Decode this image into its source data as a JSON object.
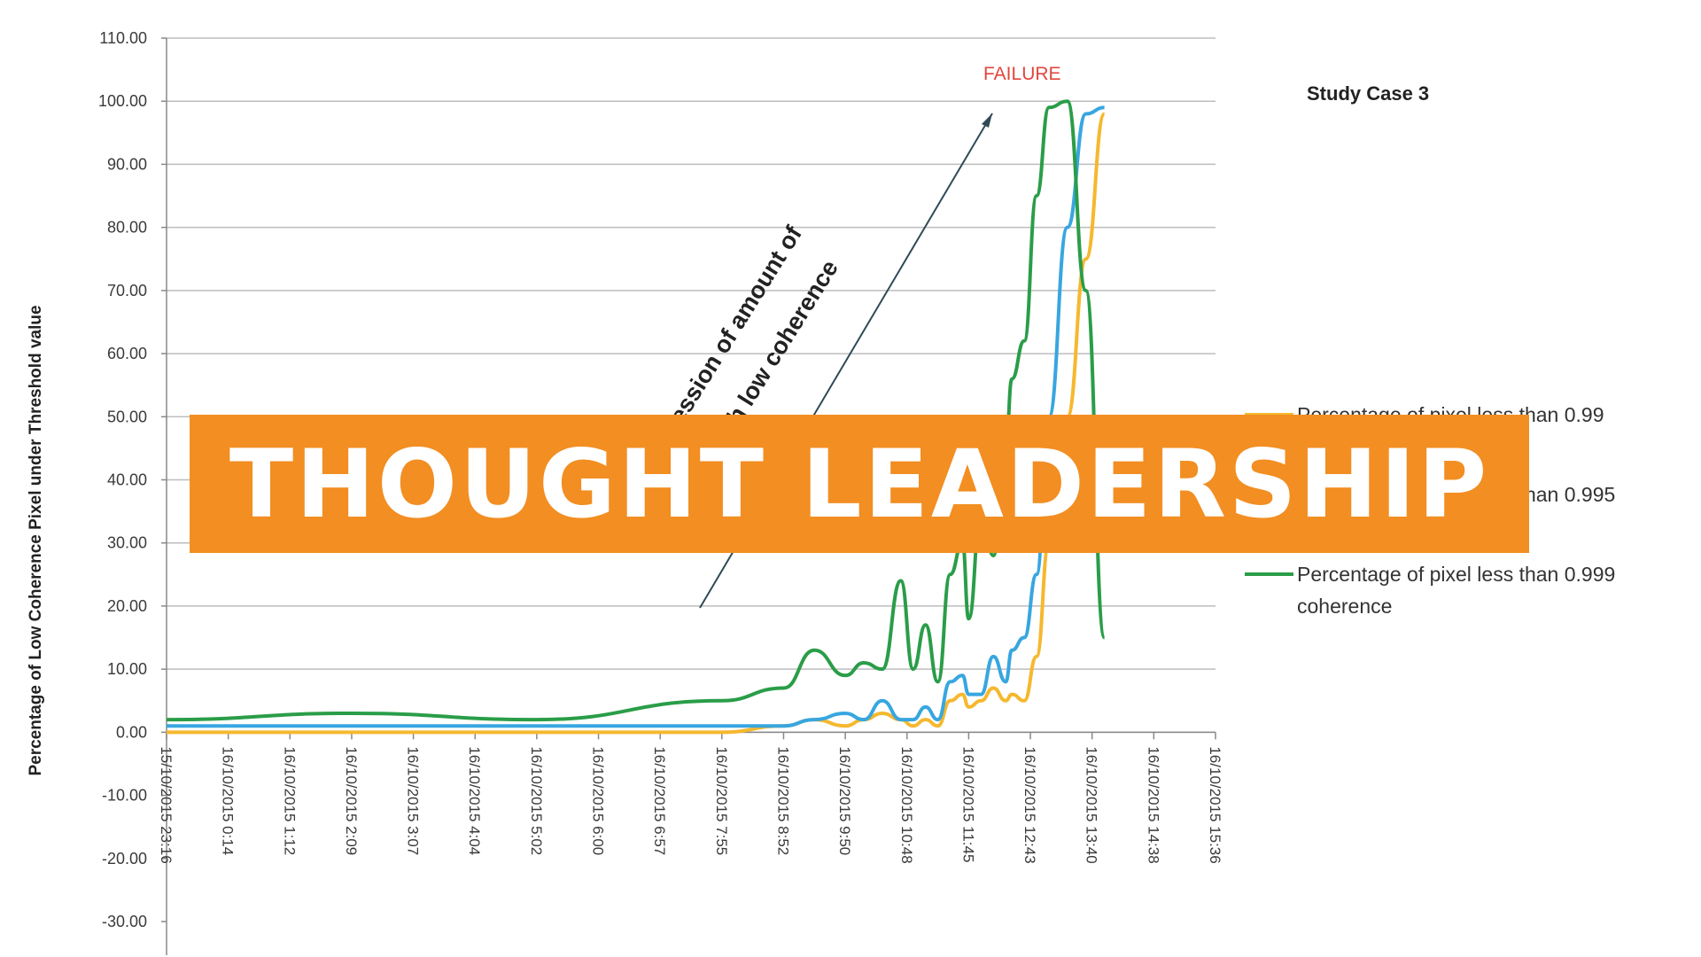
{
  "banner": {
    "text": "THOUGHT LEADERSHIP",
    "background": "#f28e22",
    "color": "#ffffff"
  },
  "chart_data": {
    "type": "line",
    "title": "Study Case 3",
    "ylabel": "Percentage of Low Coherence Pixel under Threshold value",
    "xlabel": "",
    "ylim": [
      -30,
      110
    ],
    "yticks": [
      "110.00",
      "100.00",
      "90.00",
      "80.00",
      "70.00",
      "60.00",
      "50.00",
      "40.00",
      "30.00",
      "20.00",
      "10.00",
      "0.00",
      "-10.00",
      "-20.00",
      "-30.00"
    ],
    "xticks": [
      "15/10/2015 23:16",
      "16/10/2015 0:14",
      "16/10/2015 1:12",
      "16/10/2015 2:09",
      "16/10/2015 3:07",
      "16/10/2015 4:04",
      "16/10/2015 5:02",
      "16/10/2015 6:00",
      "16/10/2015 6:57",
      "16/10/2015 7:55",
      "16/10/2015 8:52",
      "16/10/2015 9:50",
      "16/10/2015 10:48",
      "16/10/2015 11:45",
      "16/10/2015 12:43",
      "16/10/2015 13:40",
      "16/10/2015 14:38",
      "16/10/2015 15:36"
    ],
    "grid": true,
    "legend_position": "right",
    "annotations": {
      "failure": "FAILURE",
      "arrow_text_1": "ession of amount of",
      "arrow_text_2": "th low coherence"
    },
    "series": [
      {
        "name": "Percentage of pixel less than 0.99",
        "color": "#f5b82e",
        "x": [
          0,
          3,
          6,
          9,
          10,
          10.5,
          11,
          11.3,
          11.6,
          11.9,
          12.1,
          12.3,
          12.5,
          12.7,
          12.9,
          13.0,
          13.2,
          13.4,
          13.6,
          13.7,
          13.9,
          14.1,
          14.3,
          14.6,
          14.9,
          15.2
        ],
        "y": [
          0,
          0,
          0,
          0,
          1,
          2,
          1,
          2,
          3,
          2,
          1,
          2,
          1,
          5,
          6,
          4,
          5,
          7,
          5,
          6,
          5,
          12,
          30,
          50,
          75,
          98
        ]
      },
      {
        "name": "Percentage of pixel less than 0.995",
        "color": "#38a6e0",
        "x": [
          0,
          3,
          6,
          9,
          10,
          10.5,
          11,
          11.3,
          11.6,
          11.9,
          12.1,
          12.3,
          12.5,
          12.7,
          12.9,
          13.0,
          13.2,
          13.4,
          13.6,
          13.7,
          13.9,
          14.1,
          14.3,
          14.6,
          14.9,
          15.2
        ],
        "y": [
          1,
          1,
          1,
          1,
          1,
          2,
          3,
          2,
          5,
          2,
          2,
          4,
          2,
          8,
          9,
          6,
          6,
          12,
          8,
          13,
          15,
          25,
          50,
          80,
          98,
          99
        ]
      },
      {
        "name": "Percentage of pixel less than 0.999 coherence",
        "color": "#2a9d48",
        "x": [
          0,
          3,
          6,
          9,
          10,
          10.5,
          11,
          11.3,
          11.6,
          11.9,
          12.1,
          12.3,
          12.5,
          12.7,
          12.9,
          13.0,
          13.2,
          13.4,
          13.6,
          13.7,
          13.9,
          14.1,
          14.3,
          14.6,
          14.9,
          15.2
        ],
        "y": [
          2,
          3,
          2,
          5,
          7,
          13,
          9,
          11,
          10,
          24,
          10,
          17,
          8,
          25,
          30,
          18,
          35,
          28,
          45,
          56,
          62,
          85,
          99,
          100,
          70,
          15
        ]
      }
    ]
  }
}
